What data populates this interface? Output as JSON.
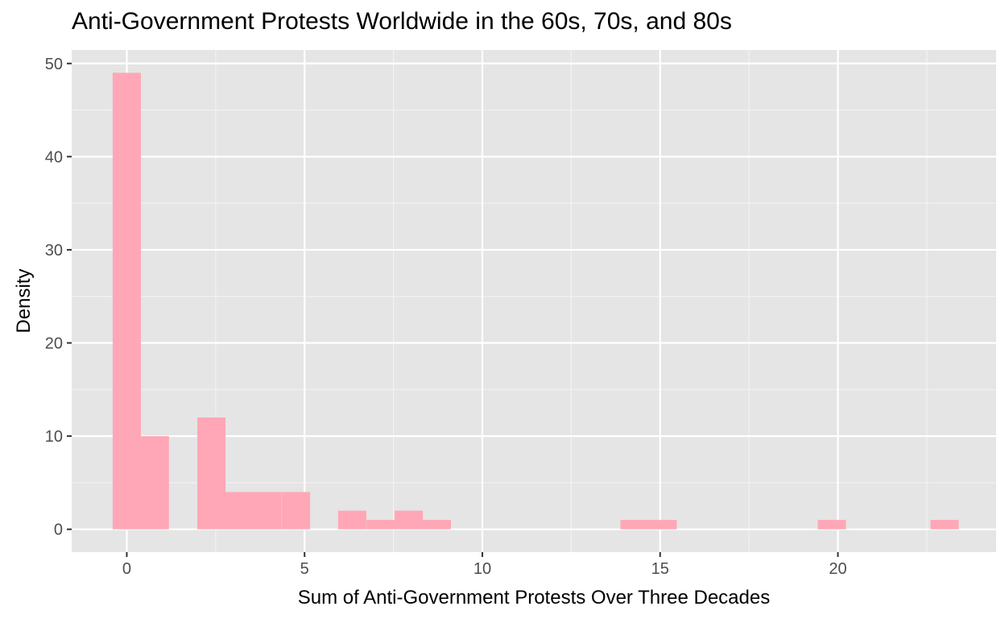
{
  "chart_data": {
    "type": "bar",
    "title": "Anti-Government Protests Worldwide in the 60s, 70s, and 80s",
    "xlabel": "Sum of Anti-Government Protests Over Three Decades",
    "ylabel": "Density",
    "xlim": [
      -1.55,
      24.45
    ],
    "ylim": [
      -2.45,
      51.45
    ],
    "x_ticks": [
      0,
      5,
      10,
      15,
      20
    ],
    "y_ticks": [
      0,
      10,
      20,
      30,
      40,
      50
    ],
    "bin_width": 0.793,
    "grid": true,
    "legend": "none",
    "series": [
      {
        "x": [
          0.0,
          0.79,
          2.38,
          3.17,
          3.96,
          4.76,
          6.34,
          7.14,
          7.93,
          8.72,
          14.28,
          15.07,
          19.83,
          23.0
        ],
        "values": [
          49,
          10,
          12,
          4,
          4,
          4,
          2,
          1,
          2,
          1,
          1,
          1,
          1,
          1
        ]
      }
    ],
    "colors": {
      "bar_fill": "#ffa7b6",
      "panel_bg": "#e5e5e5",
      "grid_major": "#ffffff",
      "grid_minor": "#f2f2f2",
      "tick_text": "#4d4d4d"
    }
  }
}
